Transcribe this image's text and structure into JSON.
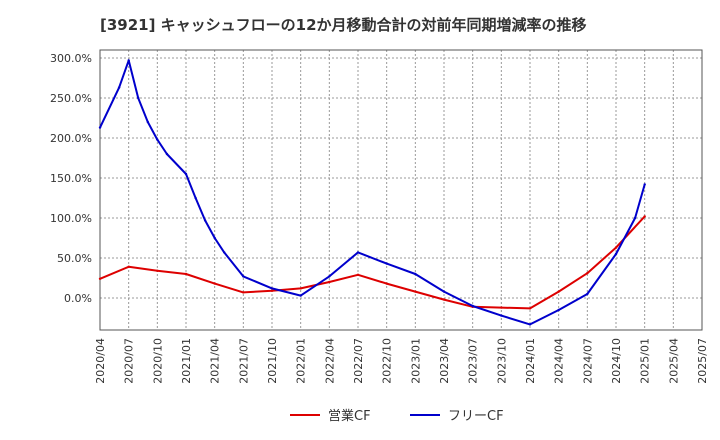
{
  "chart_data": {
    "type": "line",
    "title": "[3921]  キャッシュフローの12か月移動合計の対前年同期増減率の推移",
    "xlabel": "",
    "ylabel": "",
    "x_ticks": [
      "2020/04",
      "2020/07",
      "2020/10",
      "2021/01",
      "2021/04",
      "2021/07",
      "2021/10",
      "2022/01",
      "2022/04",
      "2022/07",
      "2022/10",
      "2023/01",
      "2023/04",
      "2023/07",
      "2023/10",
      "2024/01",
      "2024/04",
      "2024/07",
      "2024/10",
      "2025/01",
      "2025/04",
      "2025/07"
    ],
    "y_ticks": [
      "300.0%",
      "250.0%",
      "200.0%",
      "150.0%",
      "100.0%",
      "50.0%",
      "0.0%"
    ],
    "y_tick_values": [
      300,
      250,
      200,
      150,
      100,
      50,
      0
    ],
    "ylim": [
      -40,
      310
    ],
    "xlim": [
      "2020/04",
      "2025/07"
    ],
    "grid": true,
    "legend_position": "bottom-center",
    "series": [
      {
        "name": "営業CF",
        "color": "#dd0000",
        "points": [
          [
            "2020/04",
            24
          ],
          [
            "2020/07",
            39
          ],
          [
            "2020/10",
            34
          ],
          [
            "2021/01",
            30
          ],
          [
            "2021/04",
            18
          ],
          [
            "2021/07",
            7
          ],
          [
            "2021/10",
            9
          ],
          [
            "2022/01",
            12
          ],
          [
            "2022/04",
            20
          ],
          [
            "2022/07",
            29
          ],
          [
            "2022/10",
            18
          ],
          [
            "2023/01",
            8
          ],
          [
            "2023/04",
            -2
          ],
          [
            "2023/07",
            -11
          ],
          [
            "2023/10",
            -12
          ],
          [
            "2024/01",
            -13
          ],
          [
            "2024/04",
            8
          ],
          [
            "2024/07",
            31
          ],
          [
            "2024/10",
            63
          ],
          [
            "2025/01",
            102
          ]
        ]
      },
      {
        "name": "フリーCF",
        "color": "#0000cc",
        "points": [
          [
            "2020/04",
            213
          ],
          [
            "2020/06",
            263
          ],
          [
            "2020/07",
            297
          ],
          [
            "2020/08",
            250
          ],
          [
            "2020/09",
            220
          ],
          [
            "2020/10",
            198
          ],
          [
            "2020/11",
            180
          ],
          [
            "2021/01",
            155
          ],
          [
            "2021/02",
            125
          ],
          [
            "2021/03",
            97
          ],
          [
            "2021/04",
            75
          ],
          [
            "2021/05",
            57
          ],
          [
            "2021/07",
            27
          ],
          [
            "2021/10",
            12
          ],
          [
            "2022/01",
            3
          ],
          [
            "2022/04",
            27
          ],
          [
            "2022/07",
            57
          ],
          [
            "2022/10",
            43
          ],
          [
            "2023/01",
            30
          ],
          [
            "2023/04",
            8
          ],
          [
            "2023/07",
            -10
          ],
          [
            "2023/10",
            -22
          ],
          [
            "2024/01",
            -33
          ],
          [
            "2024/04",
            -15
          ],
          [
            "2024/07",
            5
          ],
          [
            "2024/10",
            55
          ],
          [
            "2024/12",
            100
          ],
          [
            "2025/01",
            142
          ]
        ]
      }
    ]
  }
}
